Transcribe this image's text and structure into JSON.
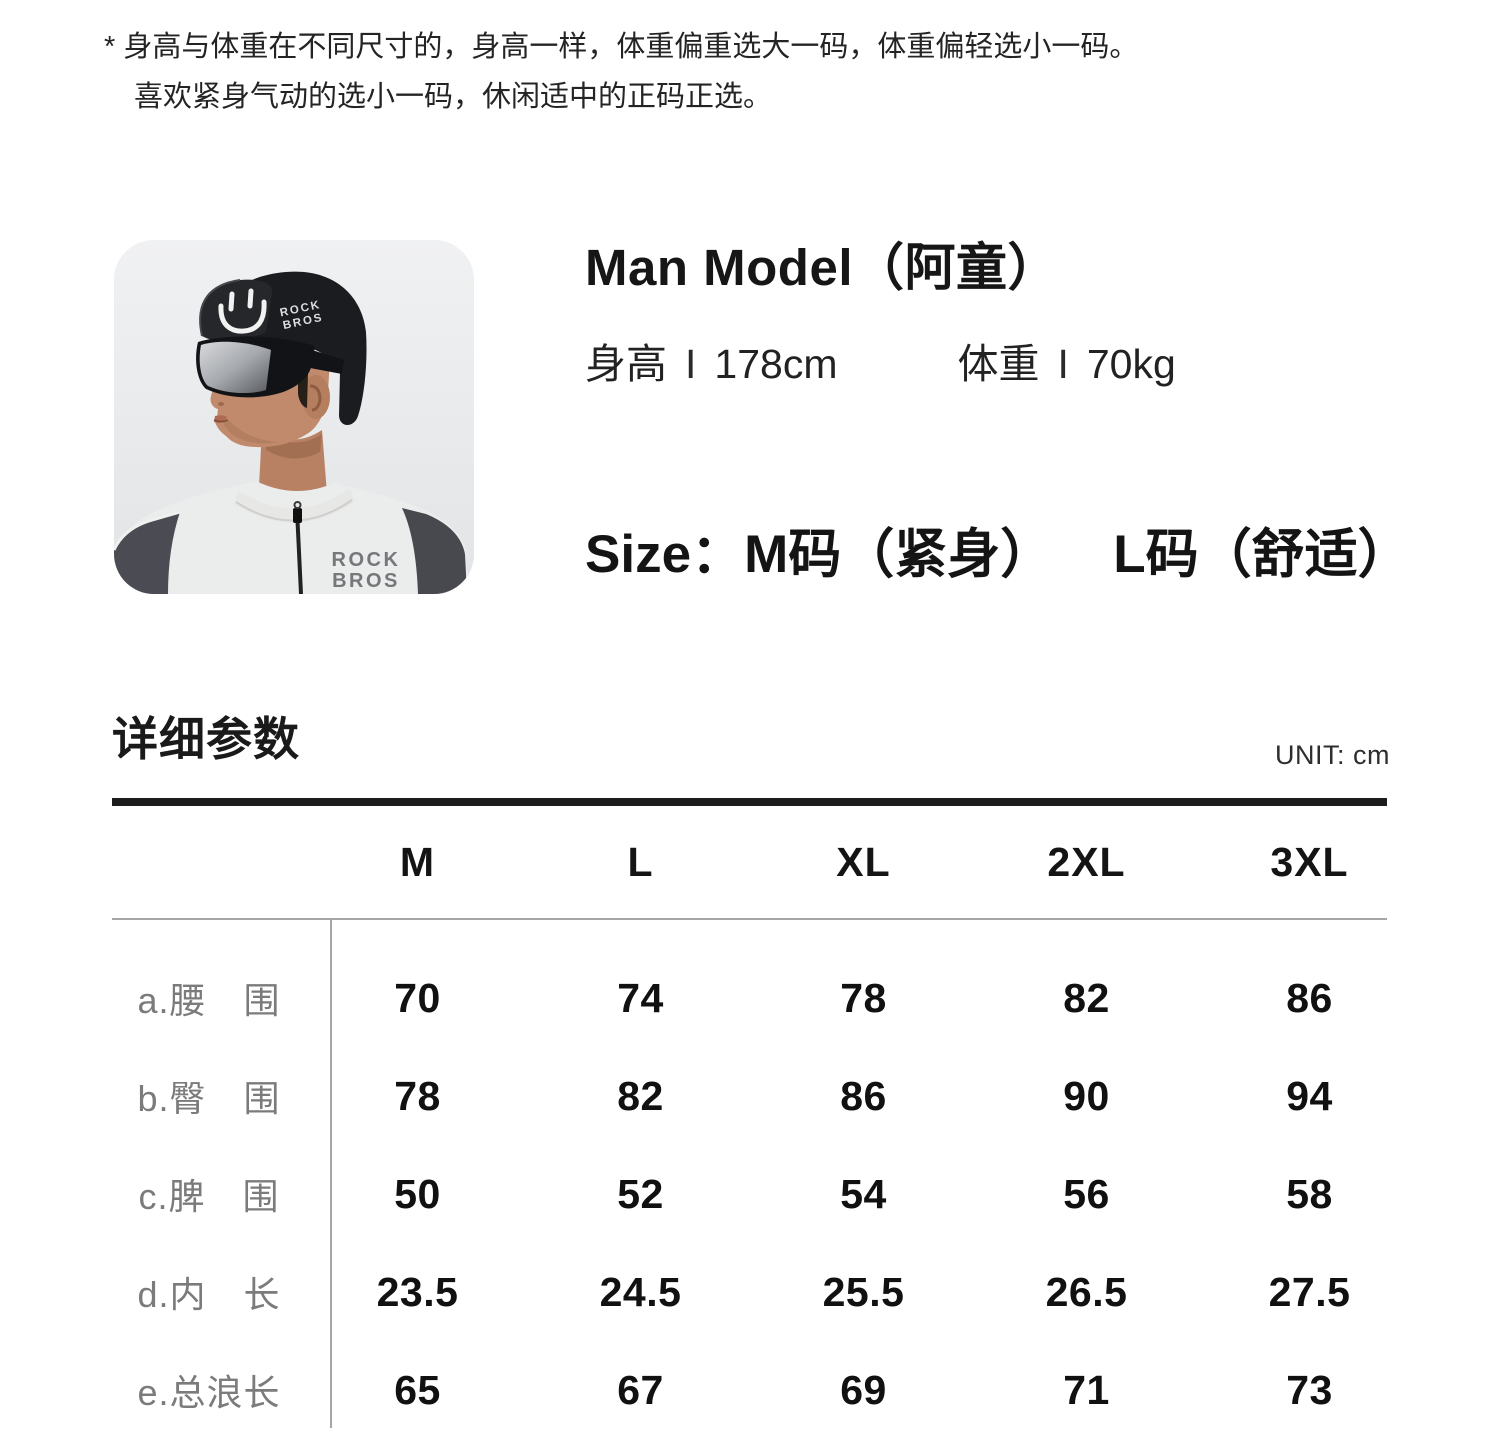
{
  "note": {
    "bullet": "*",
    "line1": "身高与体重在不同尺寸的，身高一样，体重偏重选大一码，体重偏轻选小一码。",
    "line2": "喜欢紧身气动的选小一码，休闲适中的正码正选。"
  },
  "model": {
    "title": "Man Model（阿童）",
    "stats": {
      "height_label": "身高",
      "height_sep": "I",
      "height_value": "178cm",
      "weight_label": "体重",
      "weight_sep": "I",
      "weight_value": "70kg"
    },
    "size_label": "Size：",
    "size_option1": "M码（紧身）",
    "size_option2": "L码（舒适）",
    "photo": {
      "cap_brand_line1": "ROCK",
      "cap_brand_line2": "BROS",
      "jersey_brand_line1": "ROCK",
      "jersey_brand_line2": "BROS"
    }
  },
  "table": {
    "section_title": "详细参数",
    "unit_label": "UNIT: cm",
    "columns": [
      "M",
      "L",
      "XL",
      "2XL",
      "3XL"
    ],
    "rows": [
      {
        "label": "a.腰　围",
        "values": [
          "70",
          "74",
          "78",
          "82",
          "86"
        ]
      },
      {
        "label": "b.臀　围",
        "values": [
          "78",
          "82",
          "86",
          "90",
          "94"
        ]
      },
      {
        "label": "c.脾　围",
        "values": [
          "50",
          "52",
          "54",
          "56",
          "58"
        ]
      },
      {
        "label": "d.内　长",
        "values": [
          "23.5",
          "24.5",
          "25.5",
          "26.5",
          "27.5"
        ]
      },
      {
        "label": "e.总浪长",
        "values": [
          "65",
          "67",
          "69",
          "71",
          "73"
        ]
      }
    ]
  },
  "colors": {
    "text_primary": "#1b1b1b",
    "text_secondary": "#7b7b7b",
    "rule_heavy": "#1c1c1c",
    "rule_light": "#a5a5a5",
    "cap_black": "#1b1c1f",
    "jersey_white": "#ebecec",
    "shoulder_gray": "#4b4b53"
  }
}
